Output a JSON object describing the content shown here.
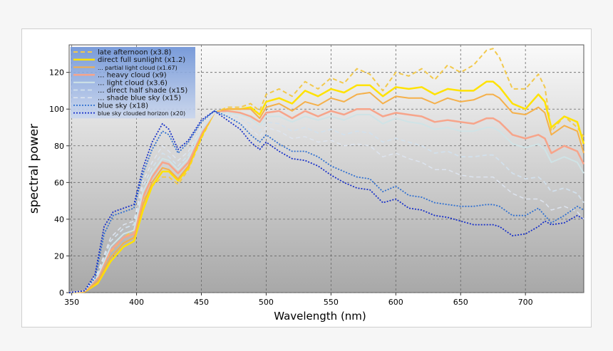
{
  "chart_data": {
    "type": "line",
    "title": "",
    "xlabel": "Wavelength (nm)",
    "ylabel": "spectral power",
    "xlim": [
      348,
      745
    ],
    "ylim": [
      0,
      135
    ],
    "xticks": [
      350,
      400,
      450,
      500,
      550,
      600,
      650,
      700
    ],
    "yticks": [
      0,
      20,
      40,
      60,
      80,
      100,
      120
    ],
    "grid": true,
    "legend_position": "top-left",
    "series": [
      {
        "name": "late afternoon (x3.8)",
        "color": "#f2c94c",
        "dash": "6,4",
        "width": 2,
        "x": [
          348,
          360,
          370,
          380,
          390,
          398,
          405,
          412,
          420,
          425,
          432,
          440,
          450,
          460,
          470,
          480,
          488,
          495,
          500,
          510,
          520,
          530,
          540,
          550,
          560,
          570,
          580,
          590,
          600,
          610,
          620,
          630,
          640,
          650,
          660,
          670,
          675,
          680,
          690,
          700,
          710,
          715,
          720,
          730,
          740,
          745
        ],
        "y": [
          0,
          0.5,
          8,
          22,
          30,
          34,
          50,
          58,
          63,
          63,
          59,
          67,
          84,
          98,
          101,
          101,
          103,
          99,
          108,
          111,
          107,
          115,
          111,
          117,
          114,
          122,
          119,
          110,
          120,
          118,
          122,
          116,
          124,
          120,
          124,
          132,
          133,
          128,
          111,
          111,
          119,
          112,
          88,
          96,
          90,
          85
        ]
      },
      {
        "name": "direct full sunlight (x1.2)",
        "color": "#ffe200",
        "dash": "",
        "width": 2.5,
        "x": [
          348,
          360,
          370,
          380,
          390,
          398,
          405,
          412,
          420,
          425,
          432,
          440,
          450,
          460,
          470,
          480,
          488,
          495,
          500,
          510,
          520,
          530,
          540,
          550,
          560,
          570,
          580,
          590,
          600,
          610,
          620,
          630,
          640,
          650,
          660,
          670,
          675,
          680,
          690,
          700,
          710,
          715,
          720,
          730,
          740,
          745
        ],
        "y": [
          0,
          0.5,
          5,
          17,
          25,
          28,
          45,
          58,
          66,
          66,
          61,
          68,
          85,
          98,
          100,
          100,
          101,
          97,
          104,
          106,
          103,
          110,
          107,
          111,
          109,
          113,
          113,
          107,
          112,
          111,
          112,
          108,
          111,
          110,
          110,
          115,
          115,
          112,
          103,
          100,
          108,
          104,
          90,
          96,
          93,
          81
        ]
      },
      {
        "name": "... partial light cloud (x1.67)",
        "color": "#f5b04a",
        "dash": "",
        "width": 2,
        "x": [
          348,
          360,
          370,
          380,
          390,
          398,
          405,
          412,
          420,
          425,
          432,
          440,
          450,
          460,
          470,
          480,
          488,
          495,
          500,
          510,
          520,
          530,
          540,
          550,
          560,
          570,
          580,
          590,
          600,
          610,
          620,
          630,
          640,
          650,
          660,
          670,
          675,
          680,
          690,
          700,
          710,
          715,
          720,
          730,
          740,
          745
        ],
        "y": [
          0,
          0.5,
          6,
          19,
          27,
          30,
          48,
          60,
          68,
          67,
          62,
          69,
          86,
          98,
          100,
          100,
          100,
          95,
          101,
          103,
          99,
          104,
          102,
          106,
          104,
          108,
          109,
          103,
          107,
          106,
          106,
          103,
          106,
          104,
          105,
          108,
          108,
          106,
          98,
          97,
          101,
          98,
          86,
          91,
          88,
          76
        ]
      },
      {
        "name": "... heavy cloud (x9)",
        "color": "#f7a48a",
        "dash": "",
        "width": 2.5,
        "x": [
          348,
          360,
          370,
          380,
          390,
          398,
          405,
          412,
          420,
          425,
          432,
          440,
          450,
          460,
          470,
          480,
          488,
          495,
          500,
          510,
          520,
          530,
          540,
          550,
          560,
          570,
          580,
          590,
          600,
          610,
          620,
          630,
          640,
          650,
          660,
          670,
          675,
          680,
          690,
          700,
          710,
          715,
          720,
          730,
          740,
          745
        ],
        "y": [
          0,
          1,
          8,
          23,
          30,
          32,
          52,
          63,
          71,
          70,
          65,
          71,
          87,
          98,
          99,
          98,
          96,
          93,
          98,
          99,
          95,
          99,
          96,
          99,
          97,
          100,
          100,
          96,
          98,
          97,
          96,
          93,
          94,
          93,
          92,
          95,
          95,
          93,
          86,
          84,
          86,
          84,
          76,
          80,
          77,
          70
        ]
      },
      {
        "name": "... light cloud (x3.6)",
        "color": "#cfe3e6",
        "dash": "",
        "width": 2,
        "x": [
          348,
          360,
          370,
          380,
          390,
          398,
          405,
          412,
          420,
          425,
          432,
          440,
          450,
          460,
          470,
          480,
          488,
          495,
          500,
          510,
          520,
          530,
          540,
          550,
          560,
          570,
          580,
          590,
          600,
          610,
          620,
          630,
          640,
          650,
          660,
          670,
          675,
          680,
          690,
          700,
          710,
          715,
          720,
          730,
          740,
          745
        ],
        "y": [
          0,
          1,
          9,
          25,
          32,
          34,
          55,
          65,
          73,
          72,
          67,
          73,
          88,
          98,
          98,
          97,
          95,
          91,
          96,
          96,
          93,
          96,
          94,
          96,
          94,
          97,
          97,
          92,
          95,
          93,
          92,
          89,
          90,
          88,
          88,
          90,
          90,
          88,
          81,
          79,
          81,
          78,
          71,
          74,
          71,
          65
        ]
      },
      {
        "name": "... direct half shade (x15)",
        "color": "#d2e0ec",
        "dash": "6,4",
        "width": 1.8,
        "x": [
          348,
          360,
          370,
          380,
          390,
          398,
          405,
          412,
          420,
          425,
          432,
          440,
          450,
          460,
          470,
          480,
          488,
          495,
          500,
          510,
          520,
          530,
          540,
          550,
          560,
          570,
          580,
          590,
          600,
          610,
          620,
          630,
          640,
          650,
          660,
          670,
          675,
          680,
          690,
          700,
          710,
          715,
          720,
          730,
          740,
          745
        ],
        "y": [
          0,
          1,
          10,
          28,
          35,
          37,
          58,
          68,
          76,
          74,
          69,
          75,
          89,
          98,
          97,
          95,
          92,
          88,
          93,
          92,
          88,
          90,
          87,
          89,
          86,
          88,
          87,
          82,
          84,
          82,
          80,
          76,
          77,
          74,
          74,
          75,
          75,
          72,
          65,
          62,
          63,
          60,
          55,
          57,
          54,
          49
        ]
      },
      {
        "name": "... shade blue sky (x15)",
        "color": "#dde4ef",
        "dash": "6,4",
        "width": 1.5,
        "x": [
          348,
          360,
          370,
          380,
          390,
          398,
          405,
          412,
          420,
          425,
          432,
          440,
          450,
          460,
          470,
          480,
          488,
          495,
          500,
          510,
          520,
          530,
          540,
          550,
          560,
          570,
          580,
          590,
          600,
          610,
          620,
          630,
          640,
          650,
          660,
          670,
          675,
          680,
          690,
          700,
          710,
          715,
          720,
          730,
          740,
          745
        ],
        "y": [
          0,
          1,
          11,
          30,
          37,
          39,
          61,
          71,
          80,
          77,
          72,
          77,
          90,
          98,
          96,
          93,
          89,
          85,
          90,
          88,
          84,
          85,
          82,
          83,
          80,
          81,
          80,
          74,
          76,
          73,
          71,
          67,
          67,
          64,
          63,
          63,
          63,
          60,
          54,
          51,
          51,
          49,
          45,
          47,
          44,
          40
        ]
      },
      {
        "name": "blue sky (x18)",
        "color": "#3070d0",
        "dash": "2,2",
        "width": 1.8,
        "x": [
          348,
          360,
          368,
          375,
          382,
          390,
          398,
          405,
          412,
          420,
          425,
          432,
          440,
          450,
          460,
          470,
          480,
          488,
          495,
          500,
          510,
          520,
          530,
          540,
          550,
          560,
          570,
          580,
          590,
          600,
          610,
          620,
          630,
          640,
          650,
          660,
          670,
          675,
          680,
          690,
          700,
          710,
          715,
          720,
          730,
          740,
          745
        ],
        "y": [
          0,
          1,
          8,
          32,
          42,
          44,
          46,
          65,
          78,
          88,
          86,
          76,
          82,
          93,
          99,
          96,
          92,
          86,
          82,
          86,
          81,
          77,
          77,
          74,
          69,
          66,
          63,
          62,
          55,
          58,
          53,
          52,
          49,
          48,
          47,
          47,
          48,
          48,
          47,
          42,
          42,
          46,
          42,
          38,
          42,
          47,
          45
        ]
      },
      {
        "name": "blue sky clouded horizon (x20)",
        "color": "#1830c8",
        "dash": "2,2",
        "width": 1.8,
        "x": [
          348,
          360,
          368,
          375,
          382,
          390,
          398,
          405,
          412,
          420,
          425,
          432,
          440,
          450,
          460,
          470,
          480,
          488,
          495,
          500,
          510,
          520,
          530,
          540,
          550,
          560,
          570,
          580,
          590,
          600,
          610,
          620,
          630,
          640,
          650,
          660,
          670,
          675,
          680,
          690,
          700,
          710,
          715,
          720,
          730,
          740,
          745
        ],
        "y": [
          0,
          1,
          10,
          36,
          44,
          46,
          48,
          68,
          82,
          92,
          89,
          78,
          83,
          94,
          99,
          94,
          89,
          82,
          78,
          82,
          77,
          73,
          72,
          69,
          64,
          60,
          57,
          56,
          49,
          51,
          46,
          45,
          42,
          41,
          39,
          37,
          37,
          37,
          36,
          31,
          32,
          36,
          39,
          37,
          38,
          42,
          40
        ]
      }
    ]
  }
}
